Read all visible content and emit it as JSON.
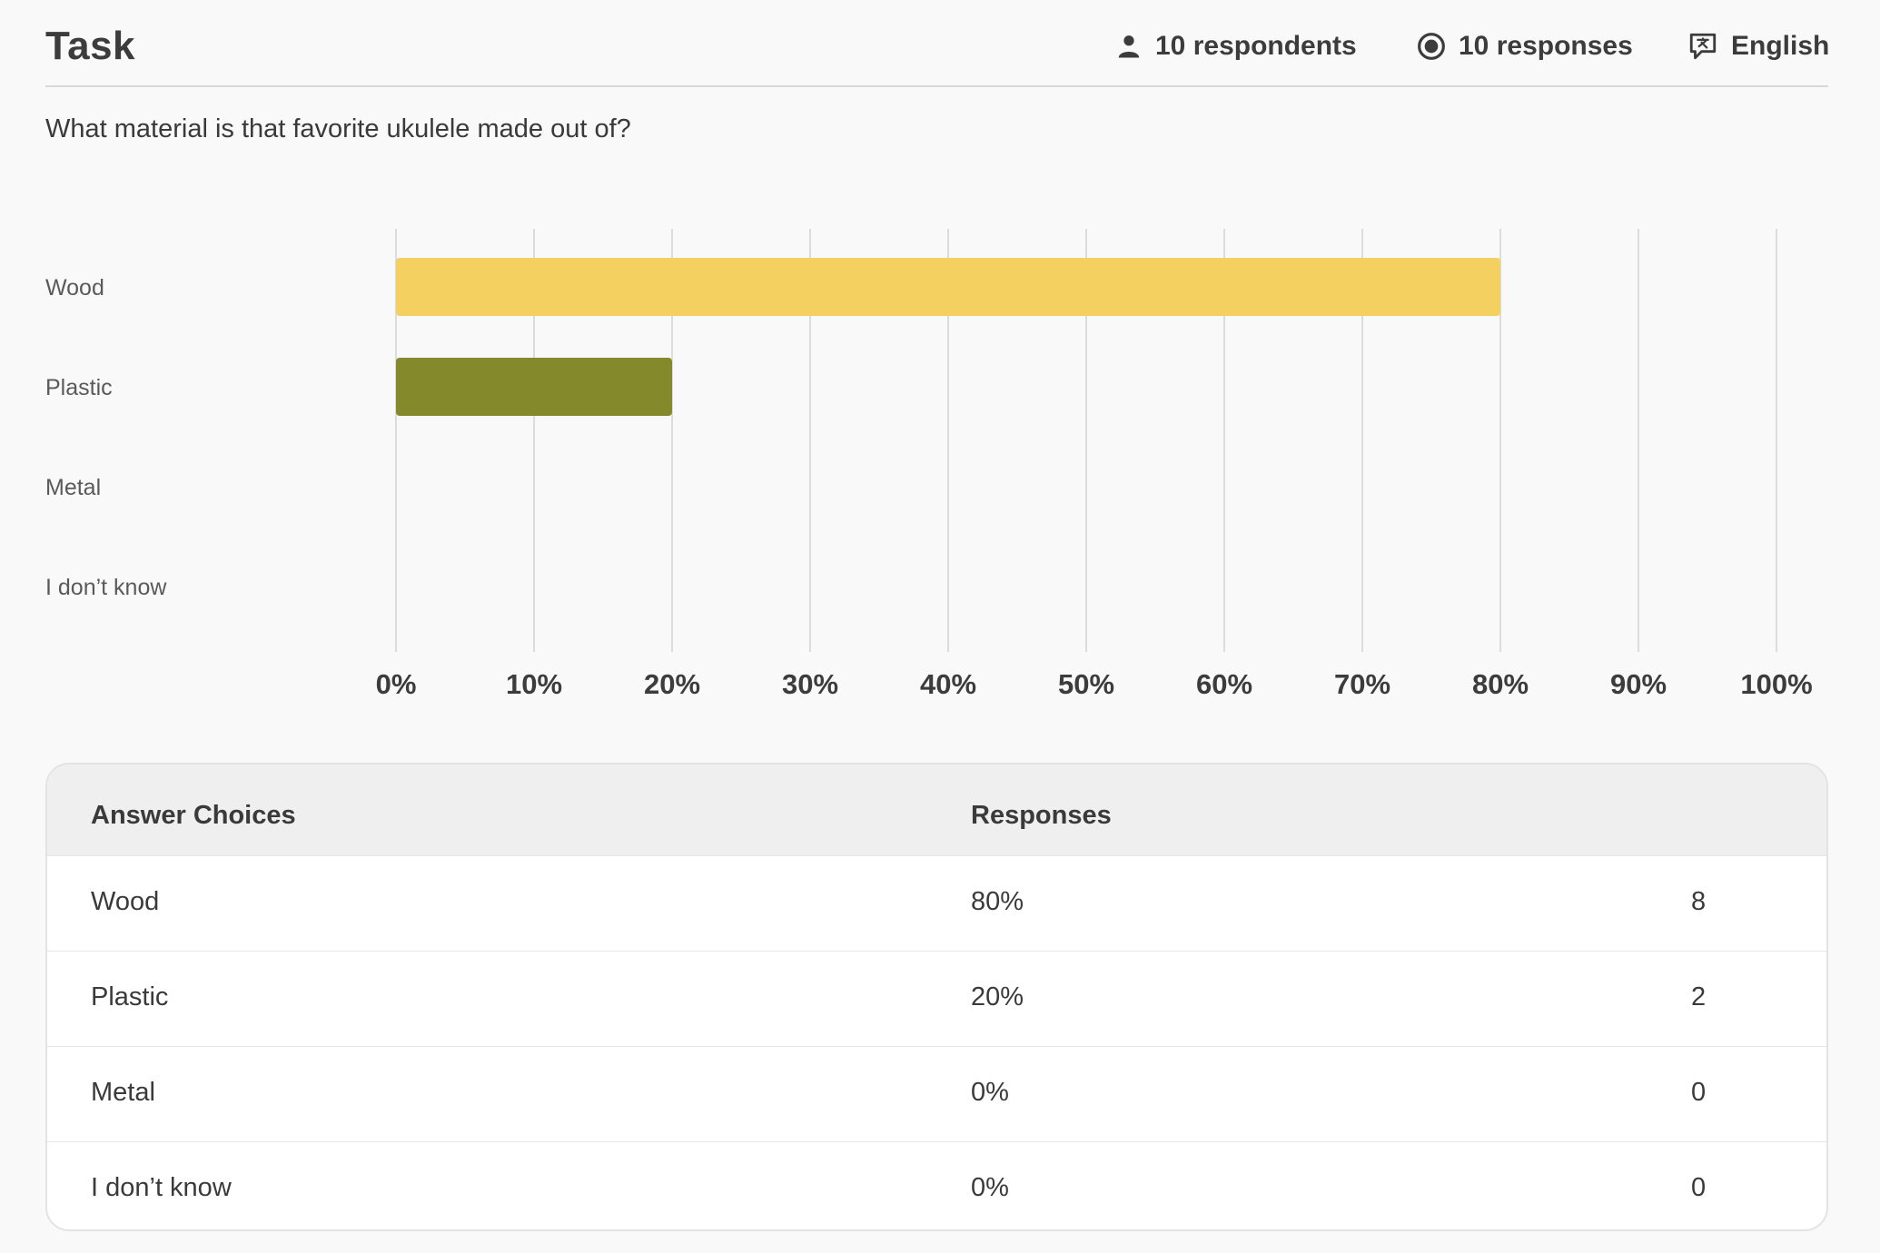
{
  "header": {
    "title": "Task",
    "respondents": "10 respondents",
    "responses": "10 responses",
    "language": "English",
    "icons": [
      "person-icon",
      "radio-target-icon",
      "translate-bubble-icon"
    ]
  },
  "question": "What material is that favorite ukulele made out of?",
  "chart_data": {
    "type": "bar",
    "orientation": "horizontal",
    "categories": [
      "Wood",
      "Plastic",
      "Metal",
      "I don’t know"
    ],
    "values": [
      80,
      20,
      0,
      0
    ],
    "colors": [
      "#f4d060",
      "#84892b",
      "#84892b",
      "#84892b"
    ],
    "xlim": [
      0,
      100
    ],
    "ticks": [
      "0%",
      "10%",
      "20%",
      "30%",
      "40%",
      "50%",
      "60%",
      "70%",
      "80%",
      "90%",
      "100%"
    ],
    "grid": true
  },
  "table": {
    "headers": {
      "choice": "Answer Choices",
      "responses": "Responses"
    },
    "rows": [
      {
        "choice": "Wood",
        "percent": "80%",
        "count": "8"
      },
      {
        "choice": "Plastic",
        "percent": "20%",
        "count": "2"
      },
      {
        "choice": "Metal",
        "percent": "0%",
        "count": "0"
      },
      {
        "choice": "I don’t know",
        "percent": "0%",
        "count": "0"
      }
    ]
  },
  "colors": {
    "accent_yellow": "#f4d060",
    "accent_olive": "#84892b",
    "text": "#3c3c3c"
  }
}
